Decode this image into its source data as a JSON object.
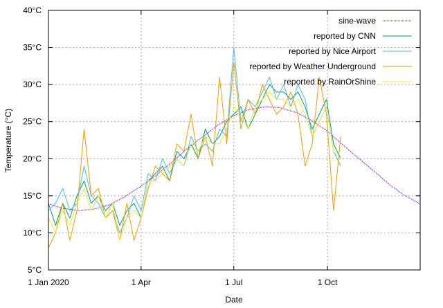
{
  "chart_data": {
    "type": "line",
    "title": "",
    "xlabel": "Date",
    "ylabel": "Temperature (°C)",
    "x_domain": [
      "2020-01-01",
      "2020-12-31"
    ],
    "ylim": [
      5,
      40
    ],
    "grid": true,
    "legend_position": "top-right",
    "x_ticks": [
      {
        "date": "2020-01-01",
        "label": "1 Jan 2020"
      },
      {
        "date": "2020-04-01",
        "label": "1 Apr"
      },
      {
        "date": "2020-07-01",
        "label": "1 Jul"
      },
      {
        "date": "2020-10-01",
        "label": "1 Oct"
      }
    ],
    "y_ticks": [
      {
        "value": 5,
        "label": "5°C"
      },
      {
        "value": 10,
        "label": "10°C"
      },
      {
        "value": 15,
        "label": "15°C"
      },
      {
        "value": 20,
        "label": "20°C"
      },
      {
        "value": 25,
        "label": "25°C"
      },
      {
        "value": 30,
        "label": "30°C"
      },
      {
        "value": 35,
        "label": "35°C"
      },
      {
        "value": 40,
        "label": "40°C"
      }
    ],
    "series": [
      {
        "name": "sine-wave",
        "color": "#9400d3",
        "style": "dotted",
        "x": [
          "2020-01-01",
          "2020-01-15",
          "2020-02-01",
          "2020-02-15",
          "2020-03-01",
          "2020-03-15",
          "2020-04-01",
          "2020-04-15",
          "2020-05-01",
          "2020-05-15",
          "2020-06-01",
          "2020-06-15",
          "2020-07-01",
          "2020-07-15",
          "2020-08-01",
          "2020-08-15",
          "2020-09-01",
          "2020-09-15",
          "2020-10-01",
          "2020-10-15",
          "2020-11-01",
          "2020-11-15",
          "2020-12-01",
          "2020-12-15",
          "2020-12-31"
        ],
        "y": [
          13.9,
          13.3,
          13.0,
          13.2,
          13.8,
          14.8,
          16.3,
          17.7,
          19.5,
          21.2,
          23.0,
          24.5,
          25.8,
          26.6,
          27.0,
          26.9,
          26.2,
          25.2,
          23.7,
          22.0,
          20.0,
          18.4,
          16.5,
          15.1,
          13.9
        ]
      },
      {
        "name": "reported by CNN",
        "color": "#009e73",
        "x": [
          "2020-01-01",
          "2020-01-08",
          "2020-01-15",
          "2020-01-22",
          "2020-01-29",
          "2020-02-05",
          "2020-02-12",
          "2020-02-19",
          "2020-02-26",
          "2020-03-04",
          "2020-03-11",
          "2020-03-18",
          "2020-03-25",
          "2020-04-01",
          "2020-04-08",
          "2020-04-15",
          "2020-04-22",
          "2020-04-29",
          "2020-05-06",
          "2020-05-13",
          "2020-05-20",
          "2020-05-27",
          "2020-06-03",
          "2020-06-10",
          "2020-06-17",
          "2020-06-24",
          "2020-07-01",
          "2020-07-08",
          "2020-07-15",
          "2020-07-22",
          "2020-07-29",
          "2020-08-05",
          "2020-08-12",
          "2020-08-19",
          "2020-08-26",
          "2020-09-02",
          "2020-09-09",
          "2020-09-16",
          "2020-09-23",
          "2020-09-30",
          "2020-10-07",
          "2020-10-14"
        ],
        "y": [
          14,
          11,
          14,
          12,
          15,
          17,
          14,
          15,
          13,
          14,
          11,
          13,
          14,
          12,
          17,
          18,
          19,
          17,
          21,
          20,
          22,
          20,
          24,
          22,
          23,
          25,
          26,
          27,
          24,
          26,
          28,
          30,
          29,
          29,
          28,
          29,
          27,
          24,
          26,
          28,
          22,
          20
        ]
      },
      {
        "name": "reported by Nice Airport",
        "color": "#56b4e9",
        "x": [
          "2020-01-01",
          "2020-01-08",
          "2020-01-15",
          "2020-01-22",
          "2020-01-29",
          "2020-02-05",
          "2020-02-12",
          "2020-02-19",
          "2020-02-26",
          "2020-03-04",
          "2020-03-11",
          "2020-03-18",
          "2020-03-25",
          "2020-04-01",
          "2020-04-08",
          "2020-04-15",
          "2020-04-22",
          "2020-04-29",
          "2020-05-06",
          "2020-05-13",
          "2020-05-20",
          "2020-05-27",
          "2020-06-03",
          "2020-06-10",
          "2020-06-17",
          "2020-06-24",
          "2020-07-01",
          "2020-07-08",
          "2020-07-15",
          "2020-07-22",
          "2020-07-29",
          "2020-08-05",
          "2020-08-12",
          "2020-08-19",
          "2020-08-26",
          "2020-09-02",
          "2020-09-09",
          "2020-09-16",
          "2020-09-23",
          "2020-09-30",
          "2020-10-07",
          "2020-10-14"
        ],
        "y": [
          13,
          14,
          16,
          13,
          14,
          19,
          15,
          14,
          12,
          13,
          10,
          12,
          15,
          13,
          18,
          17,
          20,
          18,
          20,
          19,
          23,
          21,
          22,
          21,
          24,
          23,
          35,
          25,
          28,
          27,
          29,
          31,
          28,
          30,
          27,
          30,
          28,
          23,
          25,
          27,
          21,
          19
        ]
      },
      {
        "name": "reported by Weather Underground",
        "color": "#e69f00",
        "x": [
          "2020-01-01",
          "2020-01-08",
          "2020-01-15",
          "2020-01-22",
          "2020-01-29",
          "2020-02-05",
          "2020-02-12",
          "2020-02-19",
          "2020-02-26",
          "2020-03-04",
          "2020-03-11",
          "2020-03-18",
          "2020-03-25",
          "2020-04-01",
          "2020-04-08",
          "2020-04-15",
          "2020-04-22",
          "2020-04-29",
          "2020-05-06",
          "2020-05-13",
          "2020-05-20",
          "2020-05-27",
          "2020-06-03",
          "2020-06-10",
          "2020-06-17",
          "2020-06-24",
          "2020-07-01",
          "2020-07-08",
          "2020-07-15",
          "2020-07-22",
          "2020-07-29",
          "2020-08-05",
          "2020-08-12",
          "2020-08-19",
          "2020-08-26",
          "2020-09-02",
          "2020-09-09",
          "2020-09-16",
          "2020-09-23",
          "2020-09-30",
          "2020-10-07",
          "2020-10-14"
        ],
        "y": [
          8,
          10,
          14,
          9,
          13,
          24,
          15,
          16,
          12,
          13,
          9,
          14,
          9,
          12,
          16,
          19,
          18,
          17,
          22,
          21,
          26,
          20,
          23,
          19,
          31,
          22,
          33,
          24,
          28,
          26,
          30,
          28,
          26,
          27,
          29,
          26,
          19,
          22,
          31,
          26,
          13,
          23
        ]
      },
      {
        "name": "reported by RainOrShine",
        "color": "#f0e442",
        "x": [
          "2020-01-01",
          "2020-01-08",
          "2020-01-15",
          "2020-01-22",
          "2020-01-29",
          "2020-02-05",
          "2020-02-12",
          "2020-02-19",
          "2020-02-26",
          "2020-03-04",
          "2020-03-11",
          "2020-03-18",
          "2020-03-25",
          "2020-04-01",
          "2020-04-08",
          "2020-04-15",
          "2020-04-22",
          "2020-04-29",
          "2020-05-06",
          "2020-05-13",
          "2020-05-20",
          "2020-05-27",
          "2020-06-03",
          "2020-06-10",
          "2020-06-17",
          "2020-06-24",
          "2020-07-01",
          "2020-07-08",
          "2020-07-15",
          "2020-07-22",
          "2020-07-29",
          "2020-08-05",
          "2020-08-12",
          "2020-08-19",
          "2020-08-26",
          "2020-09-02",
          "2020-09-09",
          "2020-09-16",
          "2020-09-23",
          "2020-09-30",
          "2020-10-07",
          "2020-10-14"
        ],
        "y": [
          12,
          10,
          13,
          11,
          14,
          16,
          13,
          15,
          12,
          14,
          9,
          12,
          13,
          12,
          17,
          17,
          18,
          19,
          20,
          19,
          22,
          21,
          23,
          22,
          22,
          24,
          27,
          26,
          24,
          27,
          28,
          29,
          28,
          28,
          27,
          28,
          26,
          23,
          25,
          27,
          21,
          20
        ]
      }
    ]
  }
}
